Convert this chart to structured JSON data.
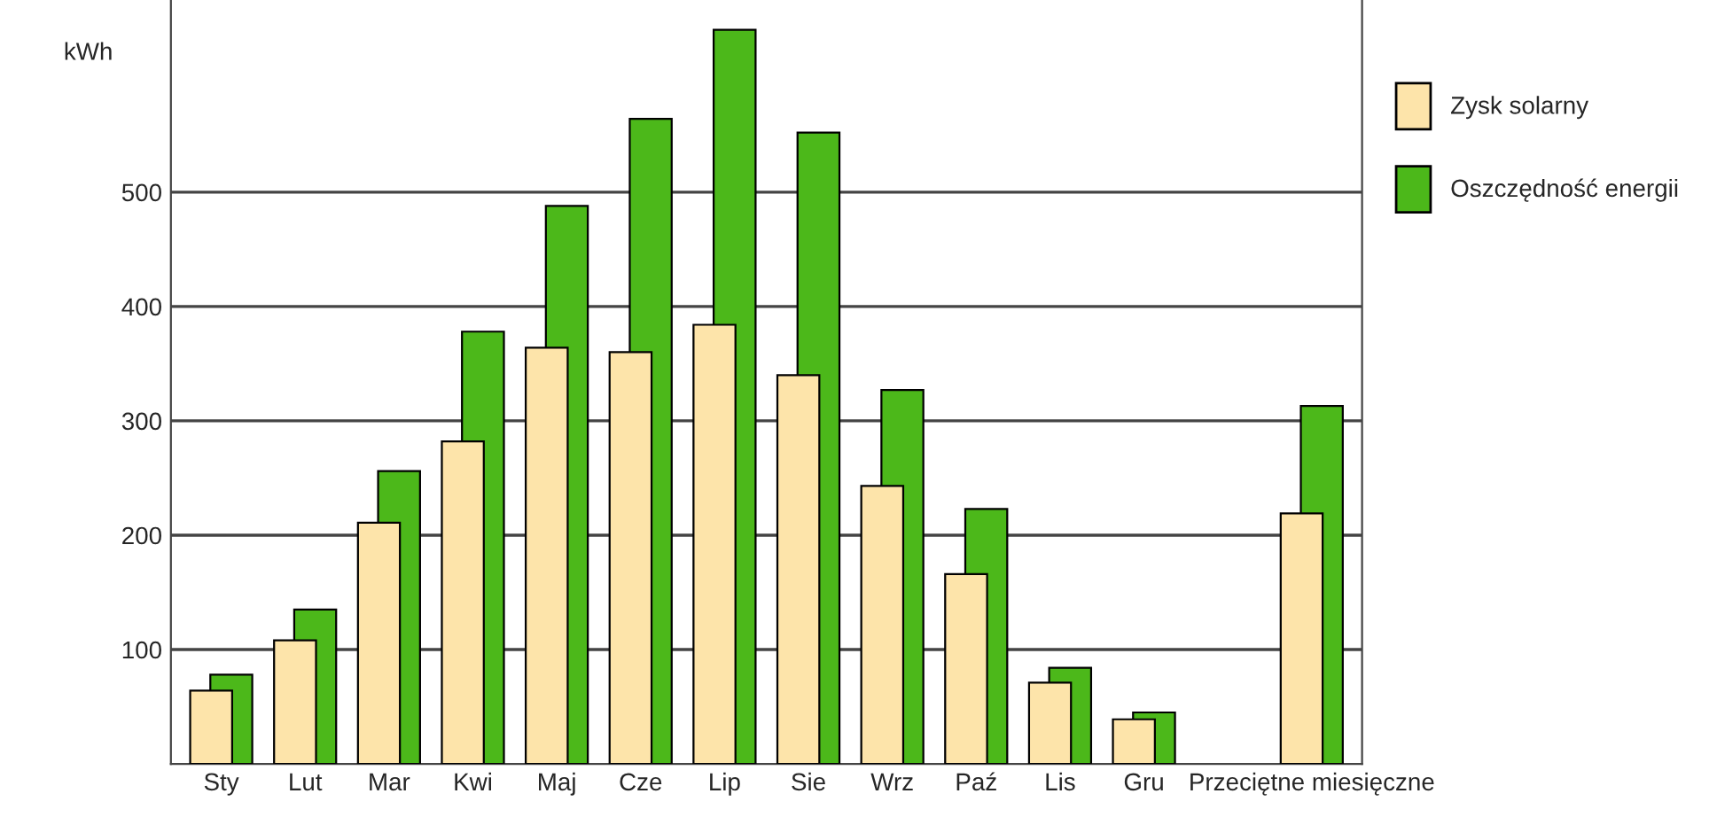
{
  "chart_data": {
    "type": "bar",
    "ylabel": "kWh",
    "categories": [
      "Sty",
      "Lut",
      "Mar",
      "Kwi",
      "Maj",
      "Cze",
      "Lip",
      "Sie",
      "Wrz",
      "Paź",
      "Lis",
      "Gru",
      null,
      "Przeciętne miesięczne"
    ],
    "series": [
      {
        "name": "Oszczędność energii",
        "color": "#4cb81a",
        "values": [
          78,
          135,
          256,
          378,
          488,
          564,
          642,
          552,
          327,
          223,
          84,
          45,
          null,
          313
        ]
      },
      {
        "name": "Zysk solarny",
        "color": "#fde4aa",
        "values": [
          64,
          108,
          211,
          282,
          364,
          360,
          384,
          340,
          243,
          166,
          71,
          39,
          null,
          219
        ]
      }
    ],
    "ylim": [
      0,
      668
    ],
    "yticks": [
      100,
      200,
      300,
      400,
      500
    ],
    "grid": "y",
    "legend": "right"
  }
}
